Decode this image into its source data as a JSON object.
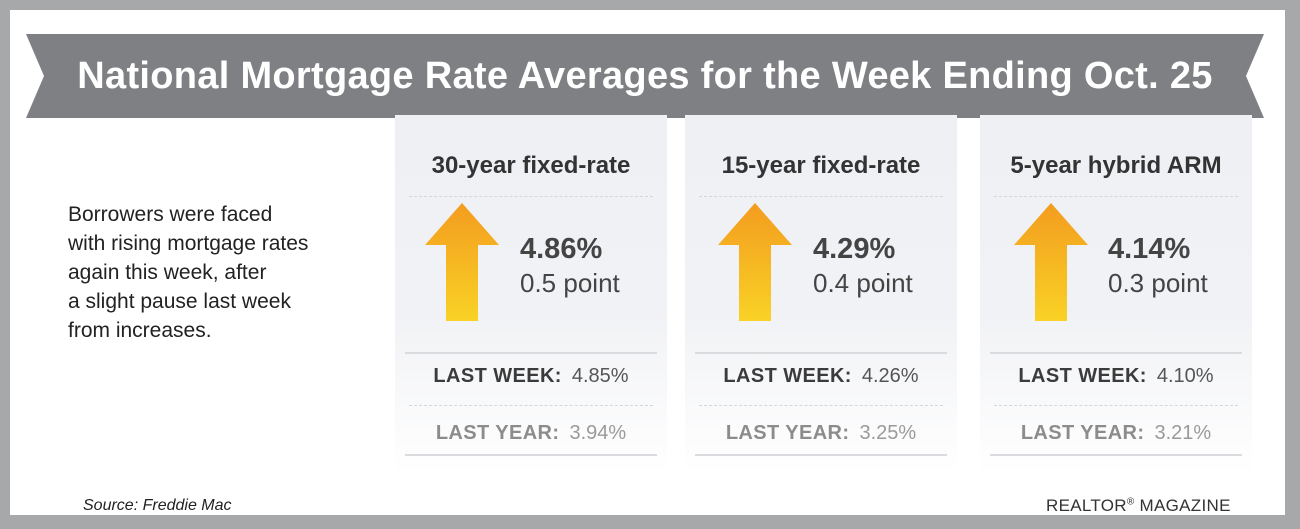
{
  "title": "National Mortgage Rate Averages for the Week Ending Oct. 25",
  "intro_lines": [
    "Borrowers were faced",
    "with rising mortgage rates",
    "again this week, after",
    "a slight pause last week",
    "from increases."
  ],
  "cards": [
    {
      "title": "30-year fixed-rate",
      "rate": "4.86%",
      "change": "0.5 point",
      "direction_icon": "up-arrow-icon",
      "last_week_label": "LAST WEEK:",
      "last_week_value": "4.85%",
      "last_year_label": "LAST YEAR:",
      "last_year_value": "3.94%"
    },
    {
      "title": "15-year fixed-rate",
      "rate": "4.29%",
      "change": "0.4 point",
      "direction_icon": "up-arrow-icon",
      "last_week_label": "LAST WEEK:",
      "last_week_value": "4.26%",
      "last_year_label": "LAST YEAR:",
      "last_year_value": "3.25%"
    },
    {
      "title": "5-year hybrid ARM",
      "rate": "4.14%",
      "change": "0.3 point",
      "direction_icon": "up-arrow-icon",
      "last_week_label": "LAST WEEK:",
      "last_week_value": "4.10%",
      "last_year_label": "LAST YEAR:",
      "last_year_value": "3.21%"
    }
  ],
  "source": "Source: Freddie Mac",
  "brand": {
    "name": "REALTOR",
    "mark": "®",
    "suffix": " MAGAZINE"
  },
  "colors": {
    "background_border": "#a7a8aa",
    "banner": "#7f8083",
    "arrow_top": "#f39c1f",
    "arrow_bottom": "#f9d225"
  }
}
